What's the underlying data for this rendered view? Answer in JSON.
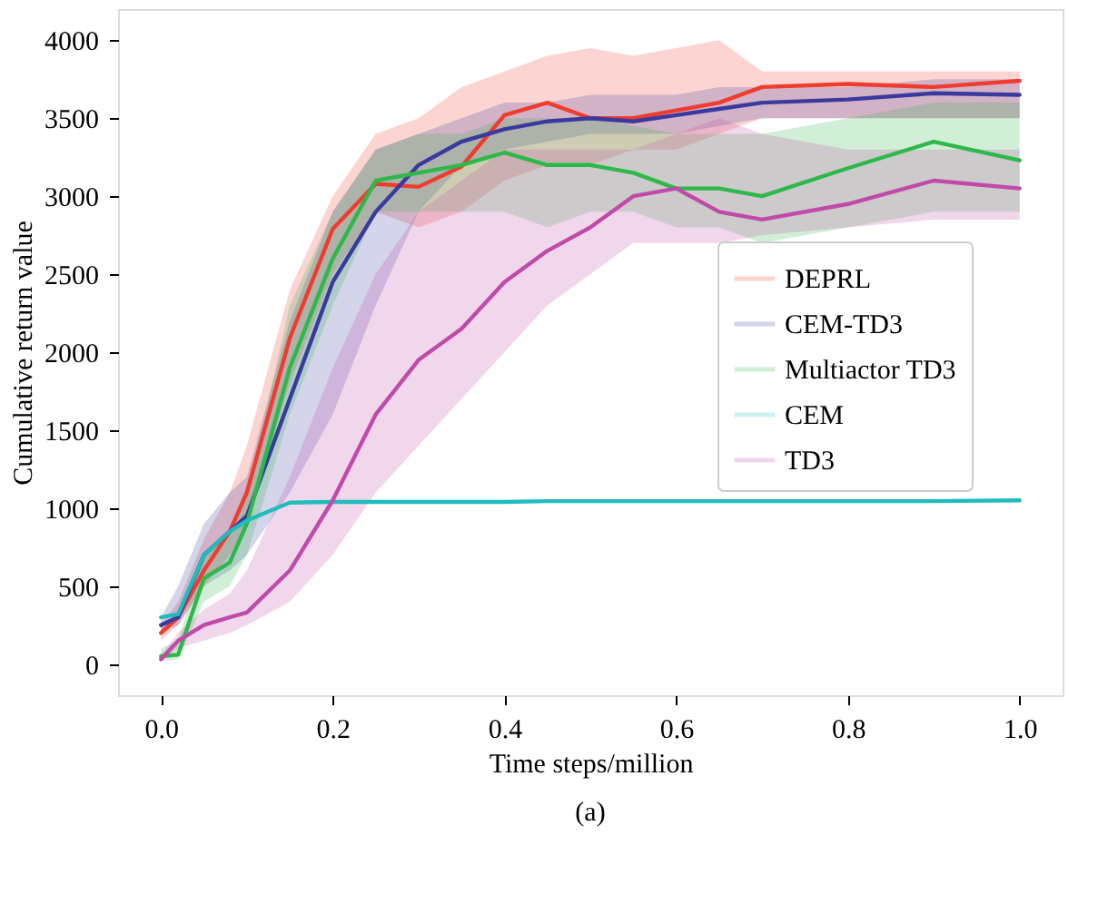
{
  "chart_data": {
    "type": "line",
    "xlabel": "Time steps/million",
    "ylabel": "Cumulative return value",
    "annotations": [
      "(a)"
    ],
    "x": [
      0,
      0.02,
      0.05,
      0.08,
      0.1,
      0.15,
      0.2,
      0.25,
      0.3,
      0.35,
      0.4,
      0.45,
      0.5,
      0.55,
      0.6,
      0.65,
      0.7,
      0.8,
      0.9,
      1.0
    ],
    "xlim": [
      -0.05,
      1.05
    ],
    "xticks": [
      {
        "value": 0,
        "label": "0.0"
      },
      0.2,
      0.4,
      0.6,
      0.8,
      {
        "value": 1,
        "label": "1.0"
      }
    ],
    "ylim": [
      -200,
      4200
    ],
    "yticks": [
      0,
      500,
      1000,
      1500,
      2000,
      2500,
      3000,
      3500,
      4000
    ],
    "grid": false,
    "legend": "right",
    "line_style": "solid",
    "marker": "none",
    "series": [
      {
        "name": "DEPRL",
        "color": "#f03c2e",
        "values": [
          200,
          300,
          600,
          850,
          1100,
          2090,
          2790,
          3080,
          3060,
          3190,
          3520,
          3600,
          3500,
          3500,
          3550,
          3600,
          3700,
          3720,
          3700,
          3740
        ],
        "lower": [
          150,
          250,
          500,
          700,
          900,
          1800,
          2500,
          2900,
          2800,
          2900,
          3100,
          3200,
          3200,
          3300,
          3300,
          3400,
          3500,
          3500,
          3500,
          3500
        ],
        "upper": [
          250,
          400,
          800,
          1100,
          1400,
          2400,
          3000,
          3400,
          3500,
          3700,
          3800,
          3900,
          3950,
          3900,
          3950,
          4000,
          3800,
          3800,
          3800,
          3800
        ]
      },
      {
        "name": "CEM-TD3",
        "color": "#3a3a9e",
        "values": [
          250,
          300,
          700,
          850,
          950,
          1700,
          2450,
          2900,
          3200,
          3350,
          3430,
          3480,
          3500,
          3480,
          3520,
          3560,
          3600,
          3620,
          3660,
          3650
        ],
        "lower": [
          200,
          250,
          500,
          600,
          700,
          1100,
          1600,
          2300,
          2900,
          3200,
          3300,
          3350,
          3400,
          3400,
          3400,
          3450,
          3500,
          3500,
          3500,
          3500
        ],
        "upper": [
          300,
          500,
          900,
          1100,
          1200,
          2200,
          2900,
          3300,
          3400,
          3500,
          3600,
          3600,
          3650,
          3650,
          3650,
          3700,
          3700,
          3700,
          3750,
          3750
        ]
      },
      {
        "name": "Multiactor TD3",
        "color": "#2eb84a",
        "values": [
          50,
          60,
          550,
          650,
          900,
          1900,
          2600,
          3100,
          3150,
          3200,
          3280,
          3200,
          3200,
          3150,
          3050,
          3050,
          3000,
          3180,
          3350,
          3230
        ],
        "lower": [
          20,
          30,
          400,
          500,
          700,
          1600,
          2300,
          2900,
          2900,
          2900,
          2900,
          2800,
          2900,
          2900,
          2800,
          2800,
          2700,
          2800,
          2900,
          2900
        ],
        "upper": [
          100,
          150,
          700,
          850,
          1100,
          2300,
          2900,
          3300,
          3400,
          3400,
          3500,
          3500,
          3500,
          3450,
          3400,
          3400,
          3400,
          3500,
          3600,
          3600
        ]
      },
      {
        "name": "CEM",
        "color": "#1fbcbc",
        "values": [
          300,
          320,
          700,
          850,
          920,
          1035,
          1040,
          1040,
          1040,
          1040,
          1040,
          1045,
          1045,
          1045,
          1045,
          1045,
          1045,
          1045,
          1045,
          1050
        ]
      },
      {
        "name": "TD3",
        "color": "#c04aa8",
        "values": [
          30,
          150,
          250,
          300,
          330,
          600,
          1050,
          1600,
          1950,
          2150,
          2450,
          2650,
          2800,
          3000,
          3050,
          2900,
          2850,
          2950,
          3100,
          3050
        ],
        "lower": [
          20,
          100,
          150,
          200,
          250,
          400,
          700,
          1100,
          1400,
          1700,
          2000,
          2300,
          2500,
          2700,
          2700,
          2700,
          2750,
          2800,
          2850,
          2850
        ],
        "upper": [
          60,
          200,
          350,
          450,
          600,
          1200,
          1900,
          2500,
          2900,
          3100,
          3300,
          3300,
          3300,
          3300,
          3400,
          3500,
          3400,
          3300,
          3300,
          3300
        ]
      }
    ]
  }
}
